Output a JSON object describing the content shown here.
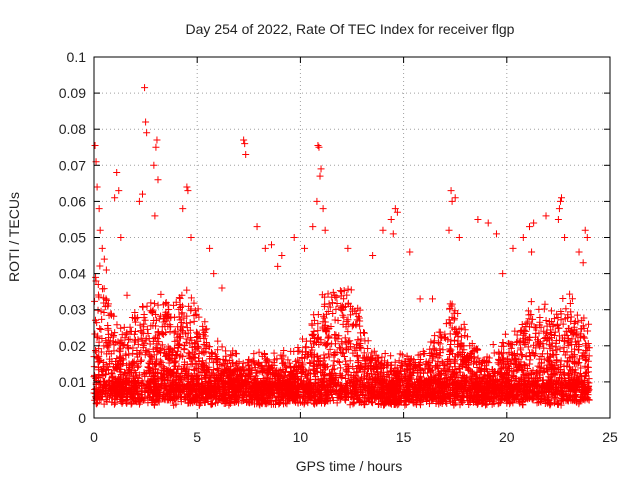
{
  "chart_data": {
    "type": "scatter",
    "title": "Day 254 of 2022, Rate Of TEC Index for receiver flgp",
    "xlabel": "GPS time / hours",
    "ylabel": "ROTI / TECUs",
    "xlim": [
      0,
      25
    ],
    "ylim": [
      0,
      0.1
    ],
    "xticks": [
      0,
      5,
      10,
      15,
      20,
      25
    ],
    "xtick_labels": [
      "0",
      "5",
      "10",
      "15",
      "20",
      "25"
    ],
    "yticks": [
      0,
      0.01,
      0.02,
      0.03,
      0.04,
      0.05,
      0.06,
      0.07,
      0.08,
      0.09,
      0.1
    ],
    "ytick_labels": [
      "0",
      "0.01",
      "0.02",
      "0.03",
      "0.04",
      "0.05",
      "0.06",
      "0.07",
      "0.08",
      "0.09",
      "0.1"
    ],
    "grid": true,
    "marker": "+",
    "color": "#ff0000",
    "series": [
      {
        "name": "ROTI",
        "points": [
          [
            0.05,
            0.0755
          ],
          [
            0.1,
            0.071
          ],
          [
            0.15,
            0.064
          ],
          [
            0.25,
            0.058
          ],
          [
            0.3,
            0.052
          ],
          [
            0.4,
            0.047
          ],
          [
            0.5,
            0.044
          ],
          [
            0.6,
            0.041
          ],
          [
            1.0,
            0.061
          ],
          [
            1.1,
            0.068
          ],
          [
            1.2,
            0.063
          ],
          [
            1.3,
            0.05
          ],
          [
            1.6,
            0.034
          ],
          [
            2.2,
            0.06
          ],
          [
            2.35,
            0.062
          ],
          [
            2.45,
            0.0915
          ],
          [
            2.5,
            0.082
          ],
          [
            2.55,
            0.079
          ],
          [
            2.9,
            0.07
          ],
          [
            3.0,
            0.075
          ],
          [
            3.05,
            0.077
          ],
          [
            3.1,
            0.066
          ],
          [
            2.95,
            0.056
          ],
          [
            3.5,
            0.032
          ],
          [
            4.3,
            0.058
          ],
          [
            4.5,
            0.064
          ],
          [
            4.55,
            0.063
          ],
          [
            4.7,
            0.05
          ],
          [
            5.6,
            0.047
          ],
          [
            5.8,
            0.04
          ],
          [
            7.25,
            0.077
          ],
          [
            7.3,
            0.076
          ],
          [
            7.35,
            0.073
          ],
          [
            7.9,
            0.053
          ],
          [
            8.3,
            0.047
          ],
          [
            8.6,
            0.048
          ],
          [
            9.1,
            0.045
          ],
          [
            9.7,
            0.05
          ],
          [
            10.2,
            0.047
          ],
          [
            10.6,
            0.053
          ],
          [
            10.8,
            0.06
          ],
          [
            10.85,
            0.0755
          ],
          [
            10.9,
            0.075
          ],
          [
            11.0,
            0.069
          ],
          [
            10.95,
            0.067
          ],
          [
            11.1,
            0.058
          ],
          [
            11.2,
            0.052
          ],
          [
            12.3,
            0.047
          ],
          [
            13.5,
            0.045
          ],
          [
            14.0,
            0.052
          ],
          [
            14.4,
            0.055
          ],
          [
            14.6,
            0.058
          ],
          [
            14.7,
            0.057
          ],
          [
            14.5,
            0.051
          ],
          [
            15.3,
            0.046
          ],
          [
            17.3,
            0.063
          ],
          [
            17.35,
            0.06
          ],
          [
            17.5,
            0.061
          ],
          [
            17.2,
            0.052
          ],
          [
            17.7,
            0.05
          ],
          [
            18.6,
            0.055
          ],
          [
            19.1,
            0.054
          ],
          [
            19.5,
            0.051
          ],
          [
            20.3,
            0.047
          ],
          [
            20.8,
            0.05
          ],
          [
            21.1,
            0.053
          ],
          [
            21.3,
            0.054
          ],
          [
            21.2,
            0.046
          ],
          [
            21.9,
            0.056
          ],
          [
            22.5,
            0.055
          ],
          [
            22.55,
            0.058
          ],
          [
            22.6,
            0.06
          ],
          [
            22.65,
            0.061
          ],
          [
            22.8,
            0.05
          ],
          [
            23.5,
            0.046
          ],
          [
            23.8,
            0.052
          ],
          [
            23.9,
            0.05
          ],
          [
            23.7,
            0.043
          ],
          [
            12.0,
            0.035
          ],
          [
            15.8,
            0.033
          ],
          [
            6.2,
            0.036
          ],
          [
            19.8,
            0.04
          ],
          [
            16.4,
            0.033
          ],
          [
            8.9,
            0.042
          ]
        ]
      }
    ]
  }
}
